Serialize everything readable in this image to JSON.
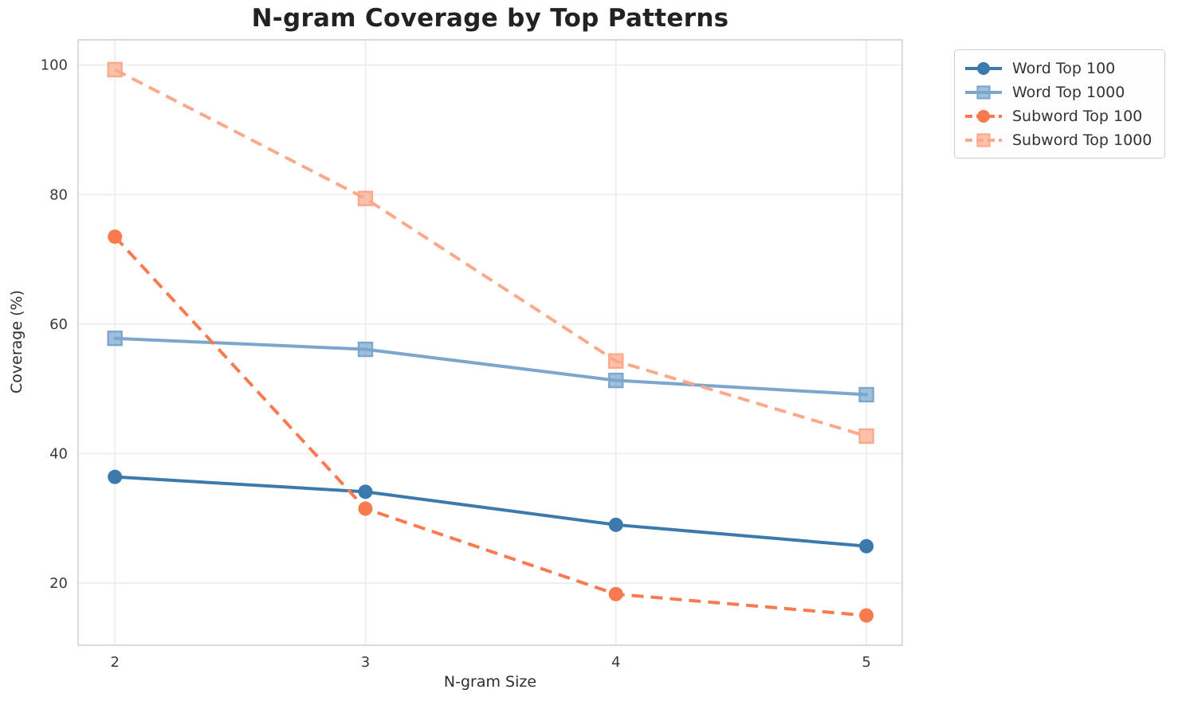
{
  "chart_data": {
    "type": "line",
    "title": "N-gram Coverage by Top Patterns",
    "xlabel": "N-gram Size",
    "ylabel": "Coverage (%)",
    "x": [
      2,
      3,
      4,
      5
    ],
    "xlim": [
      1.853,
      5.143
    ],
    "ylim": [
      10.4,
      103.9
    ],
    "yticks": [
      20,
      40,
      60,
      80,
      100
    ],
    "grid": true,
    "grid_color": "#ececec",
    "spine_color": "#d2d2d2",
    "legend_position": "outside-top-right",
    "series": [
      {
        "name": "Word Top 100",
        "values": [
          36.4,
          34.1,
          29.0,
          25.7
        ],
        "color": "#3c79ac",
        "line": "solid",
        "marker": "circle"
      },
      {
        "name": "Word Top 1000",
        "values": [
          57.8,
          56.1,
          51.3,
          49.1
        ],
        "color": "#7ca6cc",
        "line": "solid",
        "marker": "square"
      },
      {
        "name": "Subword Top 100",
        "values": [
          73.5,
          31.5,
          18.3,
          15.0
        ],
        "color": "#f97a4e",
        "line": "dashed",
        "marker": "circle"
      },
      {
        "name": "Subword Top 1000",
        "values": [
          99.3,
          79.4,
          54.3,
          42.7
        ],
        "color": "#fba98b",
        "line": "dashed",
        "marker": "square"
      }
    ]
  }
}
